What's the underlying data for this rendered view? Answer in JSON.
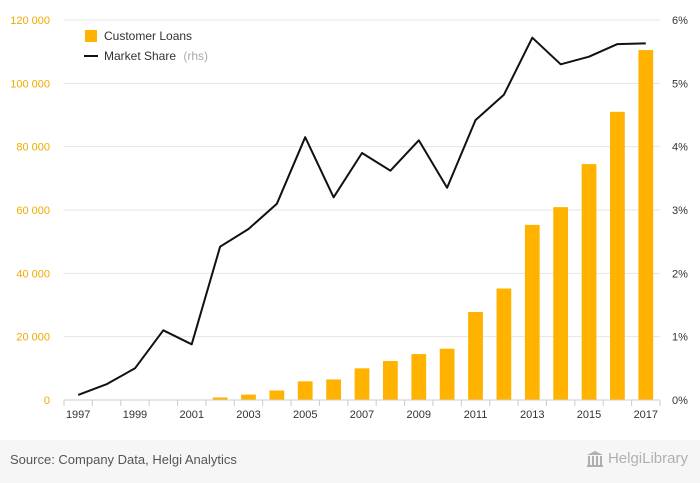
{
  "chart_data": {
    "type": "bar+line",
    "x": [
      "1997",
      "1998",
      "1999",
      "2000",
      "2001",
      "2002",
      "2003",
      "2004",
      "2005",
      "2006",
      "2007",
      "2008",
      "2009",
      "2010",
      "2011",
      "2012",
      "2013",
      "2014",
      "2015",
      "2016",
      "2017"
    ],
    "x_tick_labels": [
      "1997",
      "1999",
      "2001",
      "2003",
      "2005",
      "2007",
      "2009",
      "2011",
      "2013",
      "2015",
      "2017"
    ],
    "series": [
      {
        "name": "Customer Loans",
        "type": "bar",
        "axis": "left",
        "values": [
          0,
          0,
          0,
          0,
          0,
          800,
          1700,
          3000,
          5900,
          6500,
          10000,
          12300,
          14500,
          16200,
          27800,
          35200,
          55300,
          60900,
          74500,
          91000,
          110500
        ]
      },
      {
        "name": "Market Share",
        "name_suffix": "(rhs)",
        "type": "line",
        "axis": "right",
        "values": [
          0.08,
          0.25,
          0.5,
          1.1,
          0.88,
          2.42,
          2.7,
          3.1,
          4.15,
          3.2,
          3.9,
          3.62,
          4.1,
          3.35,
          4.42,
          4.82,
          5.72,
          5.3,
          5.42,
          5.62,
          5.63
        ]
      }
    ],
    "y_left": {
      "min": 0,
      "max": 120000,
      "ticks": [
        "0",
        "20 000",
        "40 000",
        "60 000",
        "80 000",
        "100 000",
        "120 000"
      ]
    },
    "y_right": {
      "min": 0,
      "max": 6,
      "ticks": [
        "0%",
        "1%",
        "2%",
        "3%",
        "4%",
        "5%",
        "6%"
      ]
    },
    "grid": true,
    "legend_position": "top-left",
    "colors": {
      "bar": "#ffb300",
      "line": "#111111",
      "left_axis_text": "#f2a900",
      "grid": "#e6e6e6"
    }
  },
  "footer": {
    "source": "Source: Company Data, Helgi Analytics",
    "brand": "HelgiLibrary"
  }
}
